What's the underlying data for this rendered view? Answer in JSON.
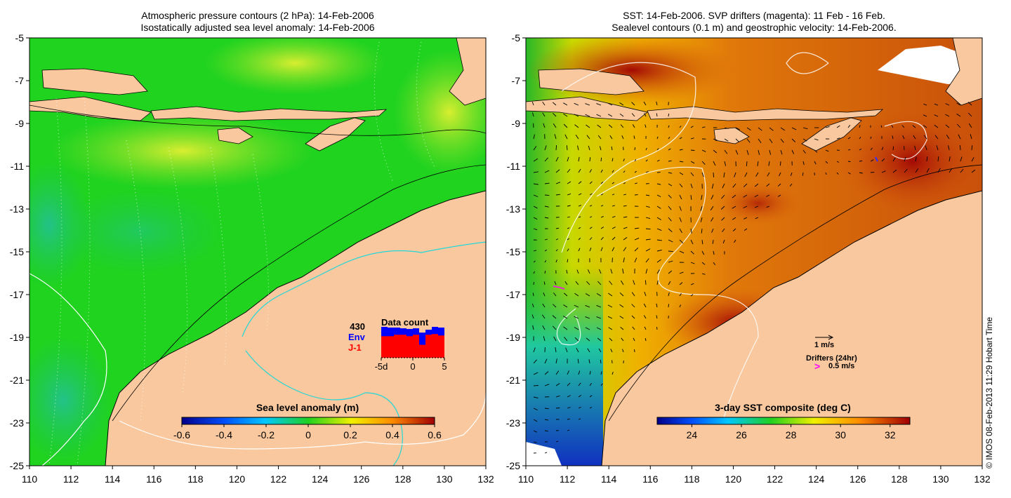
{
  "left_panel": {
    "title_line1": "Atmospheric pressure contours (2 hPa): 14-Feb-2006",
    "title_line2": "Isostatically adjusted sea level anomaly: 14-Feb-2006",
    "x_ticks": [
      "110",
      "112",
      "114",
      "116",
      "118",
      "120",
      "122",
      "124",
      "126",
      "128",
      "130",
      "132"
    ],
    "y_ticks": [
      "-5",
      "-7",
      "-9",
      "-11",
      "-13",
      "-15",
      "-17",
      "-19",
      "-21",
      "-23",
      "-25"
    ],
    "colorbar": {
      "label": "Sea level anomaly (m)",
      "ticks": [
        "-0.6",
        "-0.4",
        "-0.2",
        "0",
        "0.2",
        "0.4",
        "0.6"
      ],
      "range": [
        -0.6,
        0.6
      ]
    },
    "data_count": {
      "title": "Data count",
      "max_value": "430",
      "series": [
        {
          "name": "Env",
          "color": "#0000ff",
          "values": [
            430,
            420,
            420,
            410,
            400,
            410,
            350,
            390,
            430,
            420
          ]
        },
        {
          "name": "J-1",
          "color": "#ff0000",
          "values": [
            300,
            300,
            320,
            320,
            300,
            320,
            180,
            320,
            330,
            310
          ]
        }
      ],
      "x_ticks": [
        "-5d",
        "0",
        "5"
      ],
      "x_range": [
        -5,
        5
      ],
      "y_max": 430
    }
  },
  "right_panel": {
    "title_line1": "SST: 14-Feb-2006. SVP drifters (magenta): 11 Feb - 16 Feb.",
    "title_line2": "Sealevel contours (0.1 m) and geostrophic velocity: 14-Feb-2006.",
    "x_ticks": [
      "110",
      "112",
      "114",
      "116",
      "118",
      "120",
      "122",
      "124",
      "126",
      "128",
      "130",
      "132"
    ],
    "y_ticks": [
      "-5",
      "-7",
      "-9",
      "-11",
      "-13",
      "-15",
      "-17",
      "-19",
      "-21",
      "-23",
      "-25"
    ],
    "colorbar": {
      "label": "3-day SST composite (deg C)",
      "ticks": [
        "24",
        "26",
        "28",
        "30",
        "32"
      ],
      "range": [
        22.6,
        32.8
      ]
    },
    "legend": {
      "velocity_label": "1 m/s",
      "drifters_label": "Drifters (24hr)",
      "drifters_speed": "0.5 m/s",
      "drifter_symbol": ">"
    }
  },
  "credit": "© IMOS 08-Feb-2013 11:29 Hobart Time",
  "colors": {
    "land": "#f9c89e",
    "ocean_sla_base": "#1fd31f",
    "sst_warm": "#d9620e",
    "sst_hot": "#a30a05",
    "sst_cool": "#2f8ad6",
    "contour_white": "#ffffff",
    "contour_cyan": "#20d8d8"
  }
}
